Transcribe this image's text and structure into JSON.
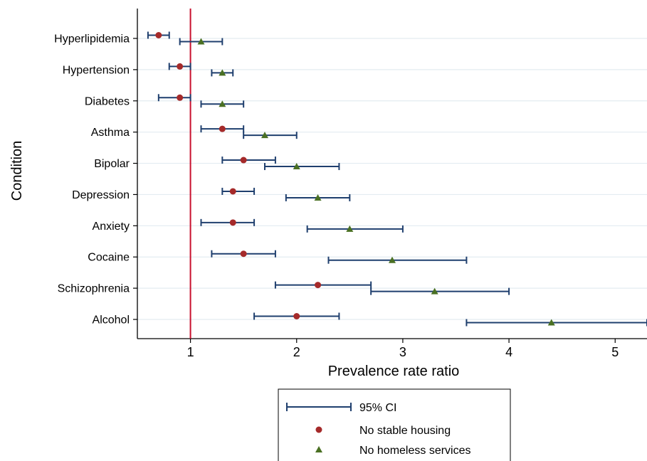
{
  "chart_data": {
    "type": "scatter",
    "title": "",
    "xlabel": "Prevalence rate ratio",
    "ylabel": "Condition",
    "xlim": [
      0.5,
      5.3
    ],
    "xticks": [
      1,
      2,
      3,
      4,
      5
    ],
    "reference_line": {
      "x": 1,
      "color": "#c8102e"
    },
    "categories": [
      "Hyperlipidemia",
      "Hypertension",
      "Diabetes",
      "Asthma",
      "Bipolar",
      "Depression",
      "Anxiety",
      "Cocaine",
      "Schizophrenia",
      "Alcohol"
    ],
    "series": [
      {
        "name": "No stable housing",
        "marker": "circle",
        "color": "#a52a2a",
        "values": [
          0.7,
          0.9,
          0.9,
          1.3,
          1.5,
          1.4,
          1.4,
          1.5,
          2.2,
          2.0
        ],
        "ci_low": [
          0.6,
          0.8,
          0.7,
          1.1,
          1.3,
          1.3,
          1.1,
          1.2,
          1.8,
          1.6
        ],
        "ci_high": [
          0.8,
          1.0,
          1.0,
          1.5,
          1.8,
          1.6,
          1.6,
          1.8,
          2.7,
          2.4
        ]
      },
      {
        "name": "No homeless services",
        "marker": "triangle",
        "color": "#4a7023",
        "values": [
          1.1,
          1.3,
          1.3,
          1.7,
          2.0,
          2.2,
          2.5,
          2.9,
          3.3,
          4.4
        ],
        "ci_low": [
          0.9,
          1.2,
          1.1,
          1.5,
          1.7,
          1.9,
          2.1,
          2.3,
          2.7,
          3.6
        ],
        "ci_high": [
          1.3,
          1.4,
          1.5,
          2.0,
          2.4,
          2.5,
          3.0,
          3.6,
          4.0,
          5.3
        ]
      }
    ],
    "ci_color": "#1f3f6e",
    "grid": true,
    "legend": {
      "placement": "bottom",
      "entries": [
        "95% CI",
        "No stable housing",
        "No homeless services"
      ]
    }
  }
}
